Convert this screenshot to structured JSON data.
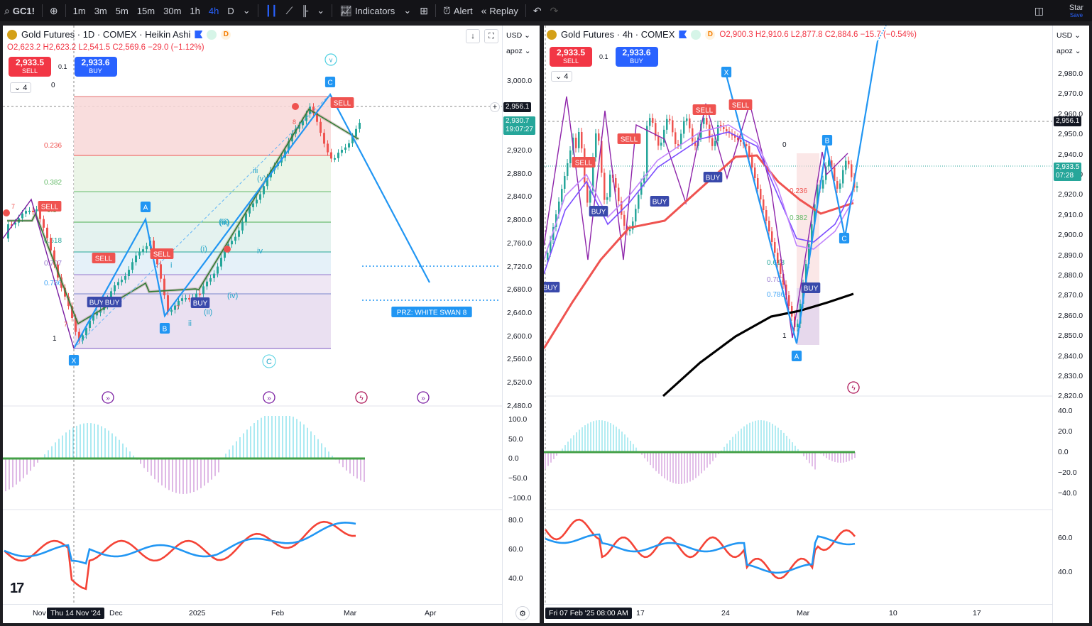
{
  "toolbar": {
    "symbol": "GC1!",
    "intervals": [
      "1m",
      "3m",
      "5m",
      "15m",
      "30m",
      "1h",
      "4h",
      "D"
    ],
    "active_interval": "4h",
    "indicators_label": "Indicators",
    "alert_label": "Alert",
    "replay_label": "Replay",
    "account_label": "Star",
    "account_sub": "Save"
  },
  "left": {
    "title": "Gold Futures · 1D · COMEX · Heikin Ashi",
    "ohlc": {
      "o": "O2,623.2",
      "h": "H2,623.2",
      "l": "L2,541.5",
      "c": "C2,569.6",
      "chg": "−29.0 (−1.12%)"
    },
    "sell_price": "2,933.5",
    "buy_price": "2,933.6",
    "sell_label": "SELL",
    "buy_label": "BUY",
    "spread": "0.1",
    "collapse_count": "4",
    "currency": "USD",
    "scale_mode": "apoz",
    "price_ticks": [
      "3,000.0",
      "2,920.0",
      "2,880.0",
      "2,840.0",
      "2,800.0",
      "2,760.0",
      "2,720.0",
      "2,680.0",
      "2,640.0",
      "2,600.0",
      "2,560.0",
      "2,520.0",
      "2,480.0"
    ],
    "cursor_price": "2,956.1",
    "last_price": "2,930.7",
    "countdown": "19:07:27",
    "osc_ticks": [
      "100.0",
      "50.0",
      "0.0",
      "−50.0",
      "−100.0"
    ],
    "rsi_ticks": [
      "80.0",
      "60.0",
      "40.0"
    ],
    "time_ticks": [
      "Nov",
      "Dec",
      "2025",
      "Feb",
      "Mar",
      "Apr"
    ],
    "cursor_time": "Thu 14 Nov '24",
    "fib_labels": [
      "0",
      "0.236",
      "0.382",
      "0.5",
      "0.618",
      "0.707",
      "0.786",
      "1"
    ],
    "points": {
      "x": "X",
      "a": "A",
      "b": "B",
      "c": "C",
      "wave_v": "v",
      "wave_C": "C"
    },
    "waves": [
      "i",
      "ii",
      "iii",
      "iv",
      "(i)",
      "(ii)",
      "(iii)",
      "(iv)",
      "(v)",
      "(iii)"
    ],
    "prz_label": "PRZ: WHITE SWAN 8",
    "signal_sell": "SELL",
    "signal_buy": "BUY",
    "small_labels": [
      "7",
      "8",
      "7",
      "7"
    ]
  },
  "right": {
    "title": "Gold Futures · 4h · COMEX",
    "ohlc": {
      "o": "O2,900.3",
      "h": "H2,910.6",
      "l": "L2,877.8",
      "c": "C2,884.6",
      "chg": "−15.7 (−0.54%)"
    },
    "sell_price": "2,933.5",
    "buy_price": "2,933.6",
    "sell_label": "SELL",
    "buy_label": "BUY",
    "spread": "0.1",
    "collapse_count": "4",
    "currency": "USD",
    "scale_mode": "apoz",
    "price_ticks": [
      "2,980.0",
      "2,970.0",
      "2,960.0",
      "2,950.0",
      "2,940.0",
      "2,930.0",
      "2,920.0",
      "2,910.0",
      "2,900.0",
      "2,890.0",
      "2,880.0",
      "2,870.0",
      "2,860.0",
      "2,850.0",
      "2,840.0",
      "2,830.0",
      "2,820.0"
    ],
    "cursor_price": "2,956.1",
    "last_price": "2,933.5",
    "countdown": "07:28",
    "osc_ticks": [
      "40.0",
      "20.0",
      "0.0",
      "−20.0",
      "−40.0"
    ],
    "rsi_ticks": [
      "60.0",
      "40.0"
    ],
    "time_ticks": [
      "17",
      "24",
      "Mar",
      "10",
      "17"
    ],
    "cursor_time": "Fri 07 Feb '25   08:00 AM",
    "fib_labels": [
      "0",
      "0.236",
      "0.382",
      "0.618",
      "0.707",
      "0.786",
      "1"
    ],
    "points": {
      "x": "X",
      "a": "A",
      "b": "B",
      "c": "C"
    },
    "signal_sell": "SELL",
    "signal_buy": "BUY"
  },
  "colors": {
    "up": "#26a69a",
    "down": "#ef5350",
    "accent": "#2962ff",
    "pattern": "#2196f3"
  }
}
